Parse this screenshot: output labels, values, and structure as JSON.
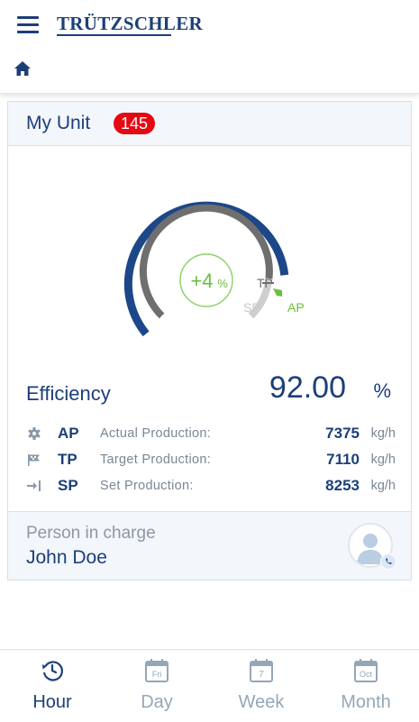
{
  "header": {
    "brand": "TRÜTZSCHLER"
  },
  "unit": {
    "title": "My Unit",
    "badge_count": "145"
  },
  "gauge": {
    "delta_value": "+4",
    "delta_unit": "%",
    "tp_label": "TP",
    "sp_label": "SP",
    "ap_label": "AP",
    "colors": {
      "actual": "#1c4788",
      "target": "#6f6f6f",
      "set": "#cfcfcf",
      "marker": "#6abf3e"
    }
  },
  "efficiency": {
    "label": "Efficiency",
    "value": "92.00",
    "unit": "%"
  },
  "production": [
    {
      "icon": "gear-icon",
      "abbr": "AP",
      "desc": "Actual Production:",
      "value": "7375",
      "unit": "kg/h"
    },
    {
      "icon": "flag-icon",
      "abbr": "TP",
      "desc": "Target Production:",
      "value": "7110",
      "unit": "kg/h"
    },
    {
      "icon": "arrow-to-line-icon",
      "abbr": "SP",
      "desc": "Set Production:",
      "value": "8253",
      "unit": "kg/h"
    }
  ],
  "person": {
    "label": "Person in charge",
    "name": "John Doe"
  },
  "tabs": [
    {
      "label": "Hour",
      "icon_text": "",
      "active": true
    },
    {
      "label": "Day",
      "icon_text": "Fri",
      "active": false
    },
    {
      "label": "Week",
      "icon_text": "7",
      "active": false
    },
    {
      "label": "Month",
      "icon_text": "Oct",
      "active": false
    }
  ]
}
